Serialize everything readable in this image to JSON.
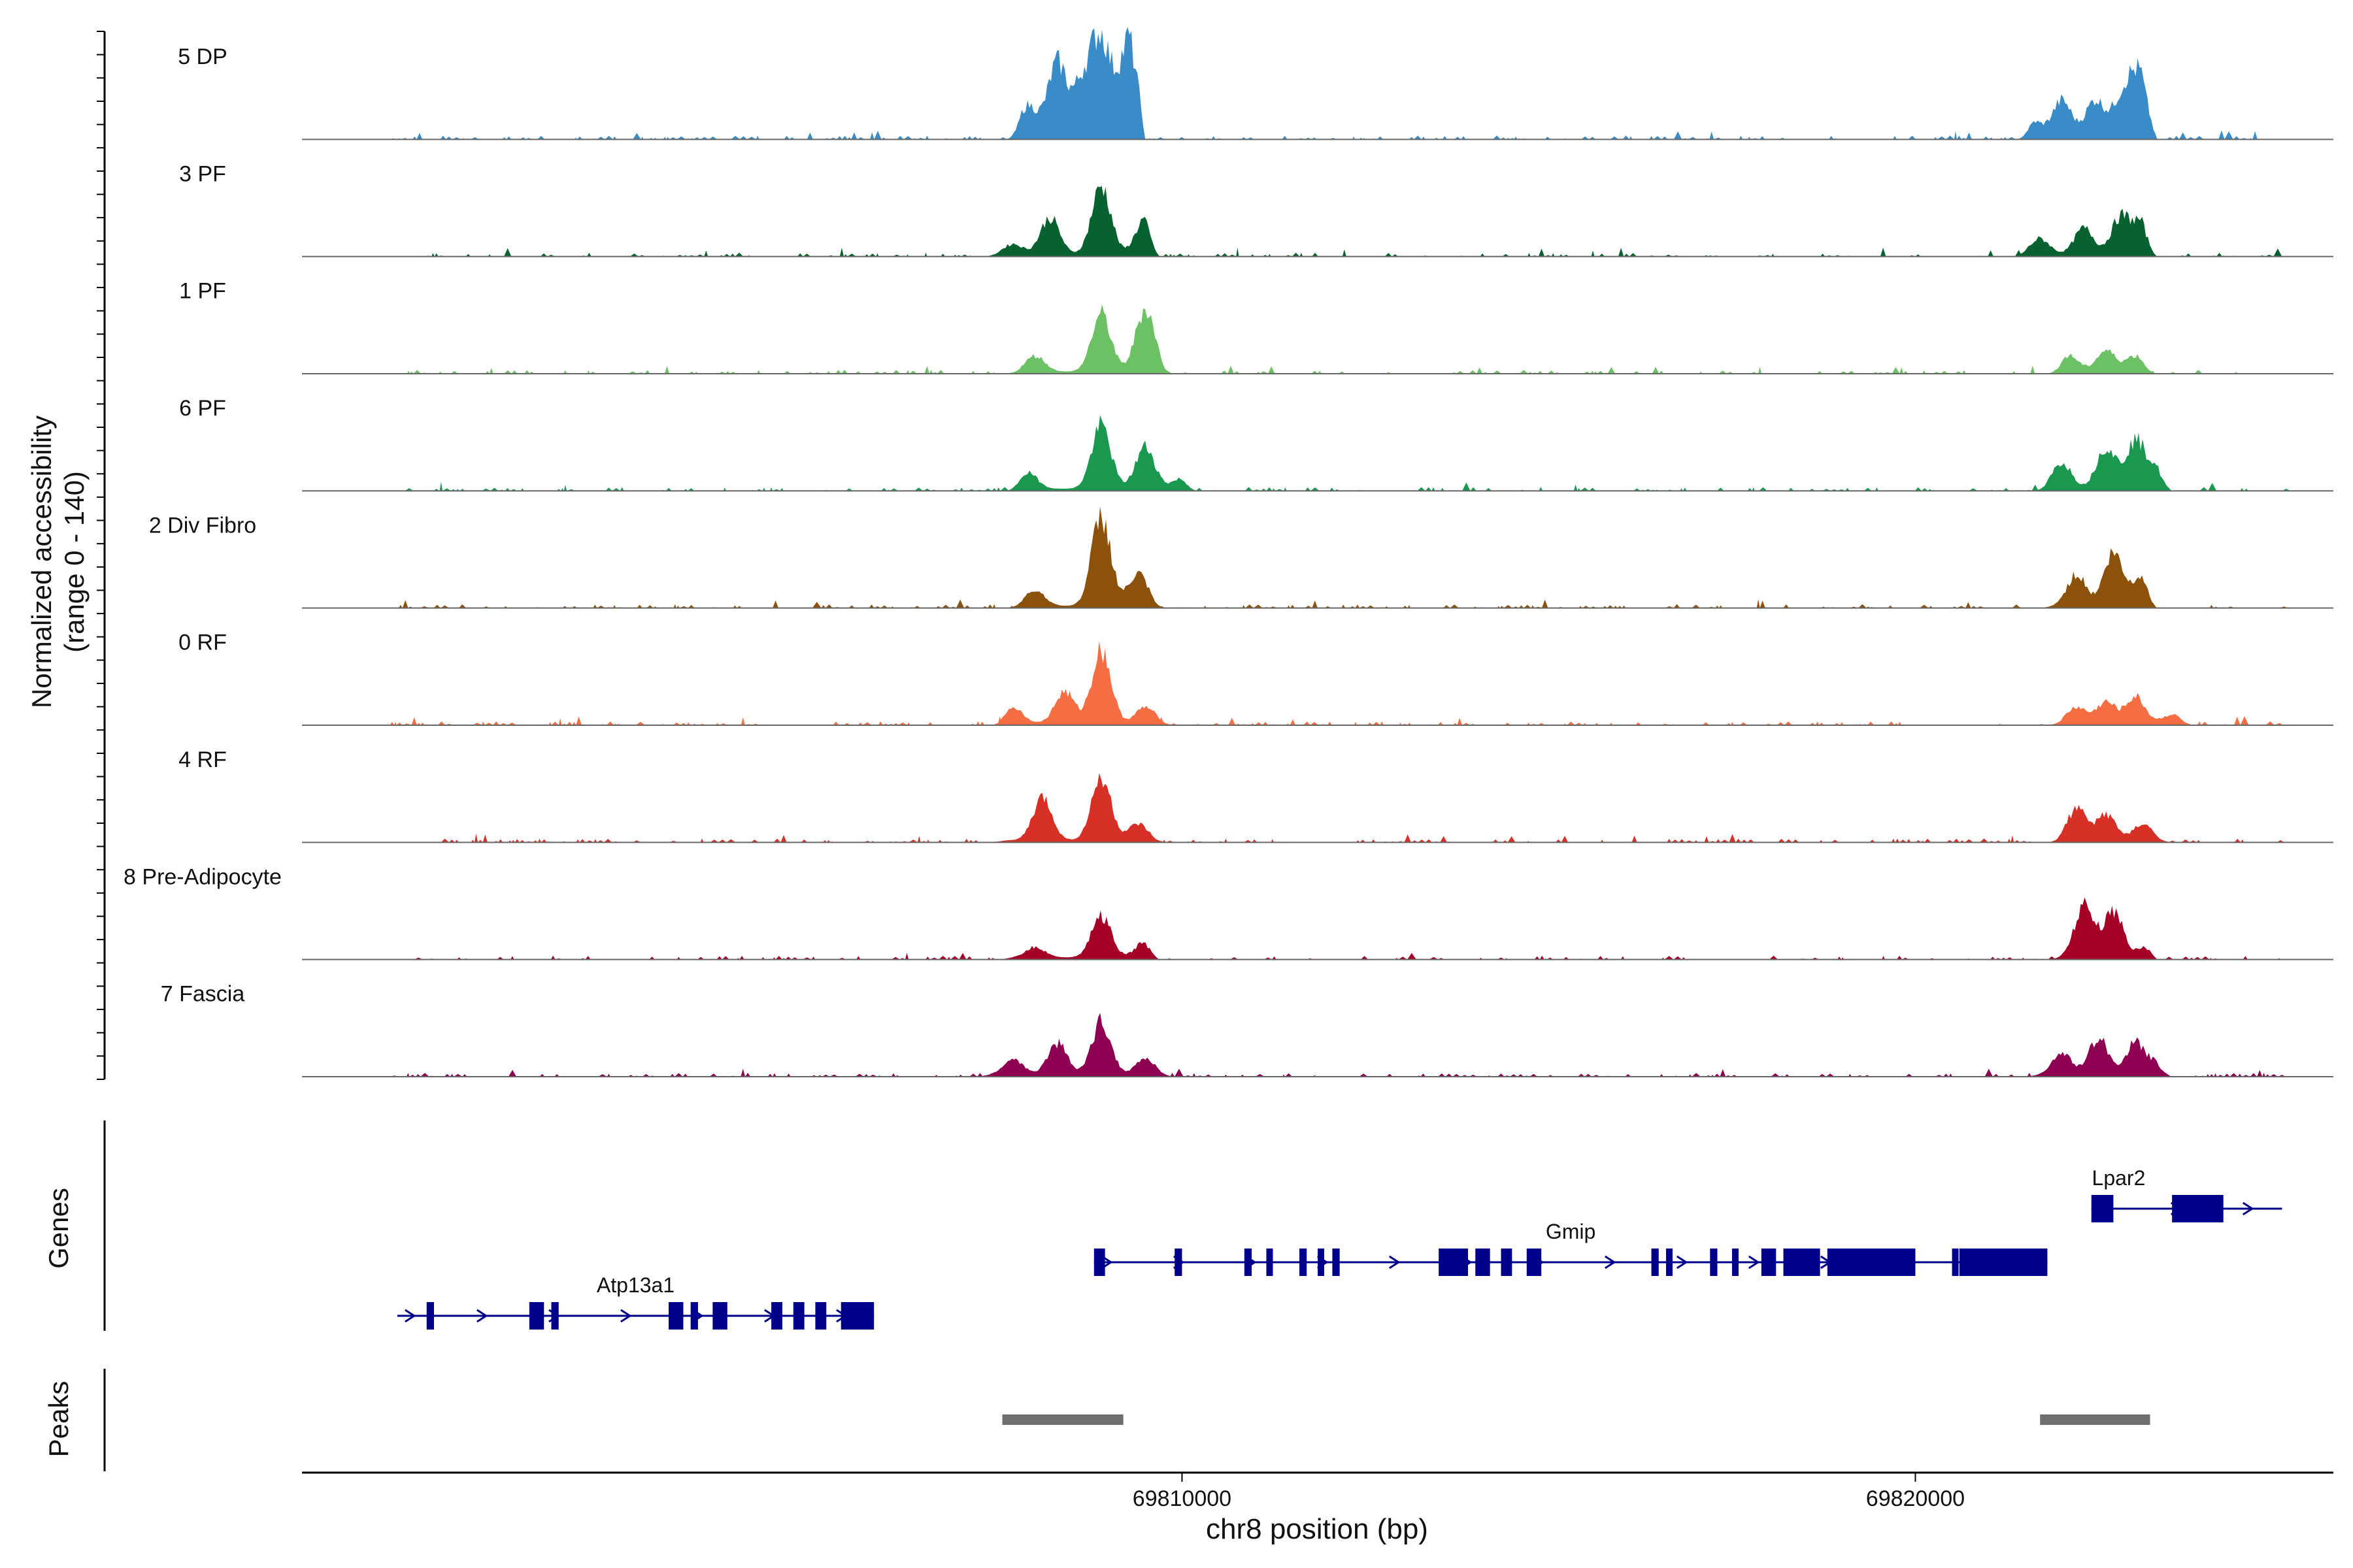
{
  "chart_data": {
    "type": "area",
    "title": "",
    "y_axis_title_line1": "Normalized accessibility",
    "y_axis_title_line2": "(range 0 - 140)",
    "ylim": [
      0,
      140
    ],
    "x_label": "chr8 position (bp)",
    "xlim": [
      69798000,
      69825700
    ],
    "x_ticks": [
      {
        "value": 69810000,
        "label": "69810000"
      },
      {
        "value": 69820000,
        "label": "69820000"
      }
    ],
    "tracks": [
      {
        "name": "5 DP",
        "color": "#3a8cc9",
        "blocks": [
          {
            "start": 69807600,
            "end": 69809500,
            "peaks": [
              [
                69807900,
                0.3
              ],
              [
                69808300,
                0.7
              ],
              [
                69808650,
                0.5
              ],
              [
                69808900,
                0.9
              ],
              [
                69809250,
                0.75
              ],
              [
                69809500,
                1.0
              ]
            ]
          },
          {
            "start": 69821400,
            "end": 69823300,
            "peaks": [
              [
                69821600,
                0.15
              ],
              [
                69822000,
                0.35
              ],
              [
                69822450,
                0.35
              ],
              [
                69822800,
                0.3
              ],
              [
                69823000,
                0.45
              ],
              [
                69823200,
                0.35
              ]
            ]
          }
        ]
      },
      {
        "name": "3 PF",
        "color": "#08622f",
        "blocks": [
          {
            "start": 69807300,
            "end": 69809700,
            "peaks": [
              [
                69807700,
                0.1
              ],
              [
                69808200,
                0.35
              ],
              [
                69808900,
                0.65
              ],
              [
                69809500,
                0.35
              ]
            ]
          },
          {
            "start": 69821300,
            "end": 69823300,
            "peaks": [
              [
                69821700,
                0.15
              ],
              [
                69822300,
                0.25
              ],
              [
                69822800,
                0.35
              ],
              [
                69823100,
                0.3
              ]
            ]
          }
        ]
      },
      {
        "name": "1 PF",
        "color": "#6cc165",
        "blocks": [
          {
            "start": 69807600,
            "end": 69809900,
            "peaks": [
              [
                69808000,
                0.15
              ],
              [
                69808900,
                0.55
              ],
              [
                69809500,
                0.6
              ]
            ]
          },
          {
            "start": 69821800,
            "end": 69823300,
            "peaks": [
              [
                69822100,
                0.15
              ],
              [
                69822600,
                0.2
              ],
              [
                69823000,
                0.15
              ]
            ]
          }
        ]
      },
      {
        "name": "6 PF",
        "color": "#1a9850",
        "blocks": [
          {
            "start": 69807600,
            "end": 69810200,
            "peaks": [
              [
                69807900,
                0.15
              ],
              [
                69808900,
                0.6
              ],
              [
                69809500,
                0.4
              ],
              [
                69810000,
                0.1
              ]
            ]
          },
          {
            "start": 69821600,
            "end": 69823500,
            "peaks": [
              [
                69822000,
                0.25
              ],
              [
                69822600,
                0.4
              ],
              [
                69823000,
                0.45
              ],
              [
                69823300,
                0.2
              ]
            ]
          }
        ]
      },
      {
        "name": "2 Div Fibro",
        "color": "#8c510a",
        "blocks": [
          {
            "start": 69807600,
            "end": 69809800,
            "peaks": [
              [
                69808000,
                0.15
              ],
              [
                69808900,
                0.85
              ],
              [
                69809400,
                0.3
              ]
            ]
          },
          {
            "start": 69821700,
            "end": 69823300,
            "peaks": [
              [
                69822200,
                0.3
              ],
              [
                69822700,
                0.5
              ],
              [
                69823100,
                0.3
              ]
            ]
          }
        ]
      },
      {
        "name": "0 RF",
        "color": "#f46d43",
        "blocks": [
          {
            "start": 69807400,
            "end": 69809900,
            "peaks": [
              [
                69807700,
                0.15
              ],
              [
                69808400,
                0.3
              ],
              [
                69808900,
                0.7
              ],
              [
                69809500,
                0.15
              ]
            ]
          },
          {
            "start": 69821800,
            "end": 69823800,
            "peaks": [
              [
                69822200,
                0.15
              ],
              [
                69822600,
                0.2
              ],
              [
                69823000,
                0.25
              ],
              [
                69823500,
                0.08
              ]
            ]
          }
        ]
      },
      {
        "name": "4 RF",
        "color": "#d73027",
        "blocks": [
          {
            "start": 69807400,
            "end": 69809800,
            "peaks": [
              [
                69808100,
                0.4
              ],
              [
                69808900,
                0.6
              ],
              [
                69809400,
                0.15
              ]
            ]
          },
          {
            "start": 69821800,
            "end": 69823500,
            "peaks": [
              [
                69822200,
                0.3
              ],
              [
                69822600,
                0.25
              ],
              [
                69823100,
                0.15
              ]
            ]
          }
        ]
      },
      {
        "name": "8 Pre-Adipocyte",
        "color": "#a50026",
        "blocks": [
          {
            "start": 69807500,
            "end": 69809700,
            "peaks": [
              [
                69808000,
                0.1
              ],
              [
                69808900,
                0.4
              ],
              [
                69809500,
                0.15
              ]
            ]
          },
          {
            "start": 69821800,
            "end": 69823300,
            "peaks": [
              [
                69822300,
                0.5
              ],
              [
                69822700,
                0.45
              ],
              [
                69823200,
                0.15
              ]
            ]
          }
        ]
      },
      {
        "name": "7 Fascia",
        "color": "#8e0152",
        "blocks": [
          {
            "start": 69807200,
            "end": 69809900,
            "peaks": [
              [
                69807700,
                0.15
              ],
              [
                69808300,
                0.3
              ],
              [
                69808900,
                0.5
              ],
              [
                69809500,
                0.15
              ]
            ]
          },
          {
            "start": 69821500,
            "end": 69823500,
            "peaks": [
              [
                69822000,
                0.2
              ],
              [
                69822500,
                0.35
              ],
              [
                69823000,
                0.3
              ],
              [
                69823300,
                0.1
              ]
            ]
          }
        ]
      }
    ],
    "genes_axis_title": "Genes",
    "genes": [
      {
        "name": "Atp13a1",
        "start": 69799300,
        "end": 69805800,
        "exons": [
          [
            69799700,
            69799800
          ],
          [
            69801100,
            69801300
          ],
          [
            69801400,
            69801500
          ],
          [
            69803000,
            69803200
          ],
          [
            69803300,
            69803400
          ],
          [
            69803600,
            69803800
          ],
          [
            69804400,
            69804550
          ],
          [
            69804700,
            69804850
          ],
          [
            69805000,
            69805150
          ],
          [
            69805350,
            69805800
          ]
        ]
      },
      {
        "name": "Gmip",
        "start": 69808800,
        "end": 69821800,
        "exons": [
          [
            69808800,
            69808950
          ],
          [
            69809900,
            69810000
          ],
          [
            69810850,
            69810950
          ],
          [
            69811150,
            69811200
          ],
          [
            69811600,
            69811700
          ],
          [
            69811850,
            69811900
          ],
          [
            69812050,
            69812150
          ],
          [
            69813500,
            69813900
          ],
          [
            69814000,
            69814200
          ],
          [
            69814350,
            69814500
          ],
          [
            69814700,
            69814900
          ],
          [
            69816400,
            69816500
          ],
          [
            69816600,
            69816650
          ],
          [
            69817200,
            69817300
          ],
          [
            69817500,
            69817550
          ],
          [
            69817900,
            69818100
          ],
          [
            69818200,
            69818700
          ],
          [
            69818800,
            69820000
          ],
          [
            69820500,
            69820550
          ],
          [
            69820600,
            69821800
          ]
        ]
      },
      {
        "name": "Lpar2",
        "start": 69822400,
        "end": 69825000,
        "exons": [
          [
            69822400,
            69822700
          ],
          [
            69823500,
            69824200
          ]
        ]
      }
    ],
    "peaks_axis_title": "Peaks",
    "peaks": [
      {
        "start": 69807550,
        "end": 69809200
      },
      {
        "start": 69821700,
        "end": 69823200
      }
    ]
  }
}
